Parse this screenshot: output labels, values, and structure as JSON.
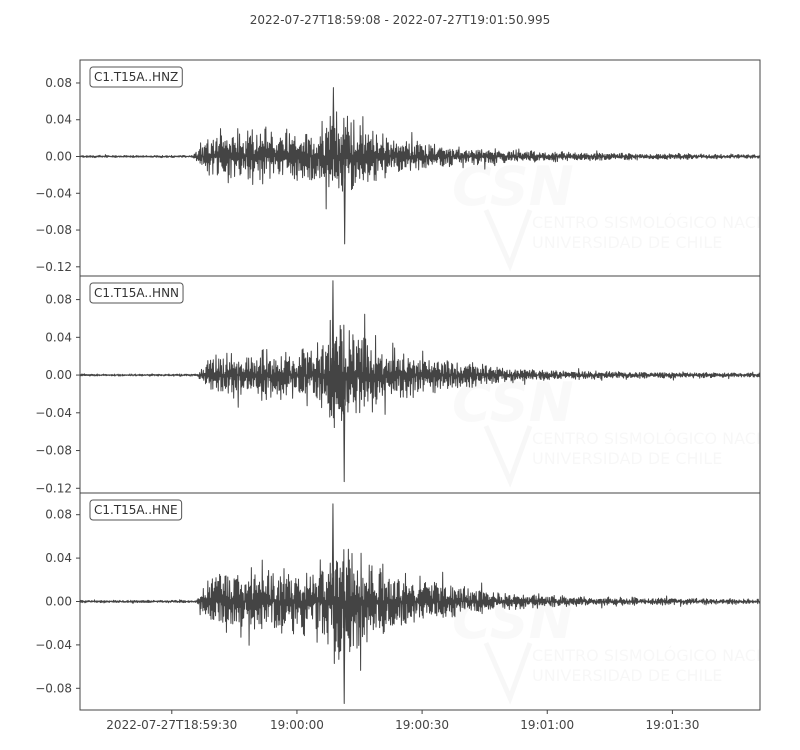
{
  "chart_data": {
    "type": "line",
    "title": "2022-07-27T18:59:08  -  2022-07-27T19:01:50.995",
    "line_color": "#444444",
    "grid": false,
    "legend": "top-left",
    "x_axis": {
      "range": [
        "2022-07-27T18:59:08",
        "2022-07-27T19:01:50.995"
      ],
      "tick_labels": [
        "2022-07-27T18:59:30",
        "19:00:00",
        "19:00:30",
        "19:01:00",
        "19:01:30"
      ],
      "tick_times": [
        "2022-07-27T18:59:30",
        "2022-07-27T19:00:00",
        "2022-07-27T19:00:30",
        "2022-07-27T19:01:00",
        "2022-07-27T19:01:30"
      ]
    },
    "panels": [
      {
        "name": "C1.T15A..HNZ",
        "ylim": [
          -0.13,
          0.105
        ],
        "yticks": [
          0.08,
          0.04,
          0.0,
          -0.04,
          -0.08,
          -0.12
        ],
        "ytick_labels": [
          "0.08",
          "0.04",
          "0.00",
          "−0.04",
          "−0.08",
          "−0.12"
        ],
        "peak_positive": 0.075,
        "peak_negative": -0.095,
        "envelope_time_s": [
          0,
          27,
          29,
          32,
          35,
          40,
          45,
          50,
          55,
          58,
          60,
          62,
          64,
          66,
          70,
          75,
          80,
          90,
          100,
          110,
          120,
          135,
          150,
          163
        ],
        "envelope_amp": [
          0.001,
          0.001,
          0.012,
          0.022,
          0.026,
          0.028,
          0.026,
          0.024,
          0.028,
          0.034,
          0.042,
          0.046,
          0.042,
          0.034,
          0.026,
          0.02,
          0.015,
          0.01,
          0.007,
          0.005,
          0.004,
          0.003,
          0.0025,
          0.002
        ]
      },
      {
        "name": "C1.T15A..HNN",
        "ylim": [
          -0.125,
          0.105
        ],
        "yticks": [
          0.08,
          0.04,
          0.0,
          -0.04,
          -0.08,
          -0.12
        ],
        "ytick_labels": [
          "0.08",
          "0.04",
          "0.00",
          "−0.04",
          "−0.08",
          "−0.12"
        ],
        "peak_positive": 0.1,
        "peak_negative": -0.113,
        "envelope_time_s": [
          0,
          28,
          30,
          32,
          35,
          40,
          45,
          50,
          55,
          58,
          60,
          62,
          64,
          66,
          70,
          75,
          80,
          90,
          100,
          110,
          120,
          135,
          150,
          163
        ],
        "envelope_amp": [
          0.001,
          0.001,
          0.012,
          0.018,
          0.021,
          0.022,
          0.021,
          0.022,
          0.026,
          0.038,
          0.05,
          0.055,
          0.048,
          0.04,
          0.03,
          0.024,
          0.019,
          0.013,
          0.008,
          0.005,
          0.004,
          0.003,
          0.0025,
          0.002
        ]
      },
      {
        "name": "C1.T15A..HNE",
        "ylim": [
          -0.1,
          0.1
        ],
        "yticks": [
          0.08,
          0.04,
          0.0,
          -0.04,
          -0.08
        ],
        "ytick_labels": [
          "0.08",
          "0.04",
          "0.00",
          "−0.04",
          "−0.08"
        ],
        "peak_positive": 0.09,
        "peak_negative": -0.094,
        "envelope_time_s": [
          0,
          28,
          30,
          32,
          35,
          40,
          45,
          50,
          55,
          58,
          60,
          62,
          64,
          66,
          70,
          75,
          80,
          90,
          100,
          110,
          120,
          135,
          150,
          163
        ],
        "envelope_amp": [
          0.001,
          0.001,
          0.014,
          0.022,
          0.025,
          0.026,
          0.025,
          0.026,
          0.03,
          0.04,
          0.05,
          0.054,
          0.048,
          0.04,
          0.032,
          0.026,
          0.02,
          0.013,
          0.008,
          0.005,
          0.004,
          0.003,
          0.0025,
          0.002
        ]
      }
    ]
  },
  "watermark": {
    "logo_text": "CSN",
    "line1": "CENTRO SISMOLÓGICO NACIONAL",
    "line2": "UNIVERSIDAD DE CHILE"
  }
}
